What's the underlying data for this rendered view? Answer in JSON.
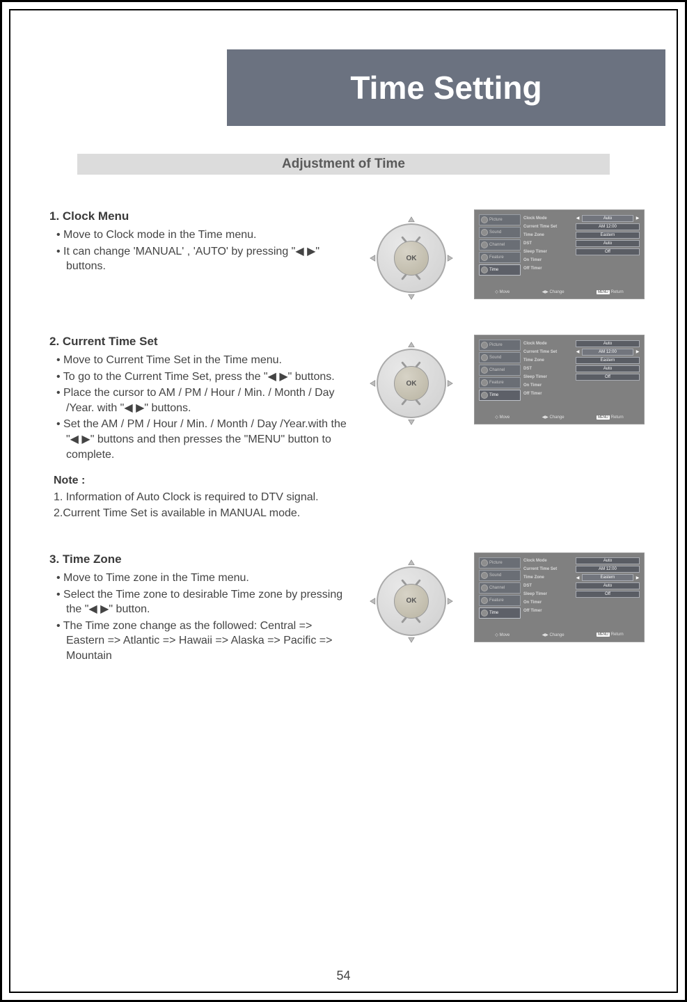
{
  "page": {
    "title": "Time Setting",
    "section": "Adjustment of Time",
    "page_number": "54"
  },
  "steps": [
    {
      "heading": "1. Clock Menu",
      "bullets": [
        "Move to Clock mode in the Time menu.",
        "It can change 'MANUAL' , 'AUTO' by pressing \"◀ ▶\" buttons."
      ]
    },
    {
      "heading": "2. Current Time Set",
      "bullets": [
        "Move to Current Time Set in the Time menu.",
        "To go to the Current Time Set, press the \"◀ ▶\" buttons.",
        "Place the cursor to AM / PM / Hour / Min. / Month / Day /Year. with \"◀ ▶\" buttons.",
        "Set the AM / PM / Hour / Min. / Month / Day /Year.with the \"◀ ▶\" buttons and then presses the \"MENU\" button to complete."
      ],
      "note_heading": "Note :",
      "note_lines": [
        "1. Information of Auto Clock is required to DTV signal.",
        "2.Current Time Set is available in MANUAL mode."
      ]
    },
    {
      "heading": "3. Time Zone",
      "bullets": [
        "Move to Time zone in the Time menu.",
        "Select the Time zone to desirable Time zone by pressing the \"◀ ▶\" button.",
        "The Time zone change as the followed: Central => Eastern => Atlantic => Hawaii => Alaska => Pacific => Mountain"
      ]
    }
  ],
  "dpad": {
    "center_label": "OK"
  },
  "osd": {
    "side_tabs": [
      "Picture",
      "Sound",
      "Channel",
      "Feature",
      "Time"
    ],
    "active_tab_index": 4,
    "rows": [
      {
        "label": "Clock Mode",
        "value": "Auto"
      },
      {
        "label": "Current Time Set",
        "value": "AM 12:00"
      },
      {
        "label": "Time Zone",
        "value": "Eastern"
      },
      {
        "label": "DST",
        "value": "Auto"
      },
      {
        "label": "Sleep Timer",
        "value": "Off"
      },
      {
        "label": "On Timer",
        "value": ""
      },
      {
        "label": "Off Timer",
        "value": ""
      }
    ],
    "footer": {
      "move": "Move",
      "change": "Change",
      "return": "Return",
      "menu_label": "MENU"
    },
    "selected_row_by_screenshot": [
      0,
      1,
      2
    ]
  },
  "colors": {
    "banner_bg": "#6b7280",
    "banner_text": "#ffffff",
    "section_bg": "#dcdcdc",
    "section_text": "#5a5a5a",
    "body_text": "#444444",
    "osd_bg": "#808080"
  }
}
